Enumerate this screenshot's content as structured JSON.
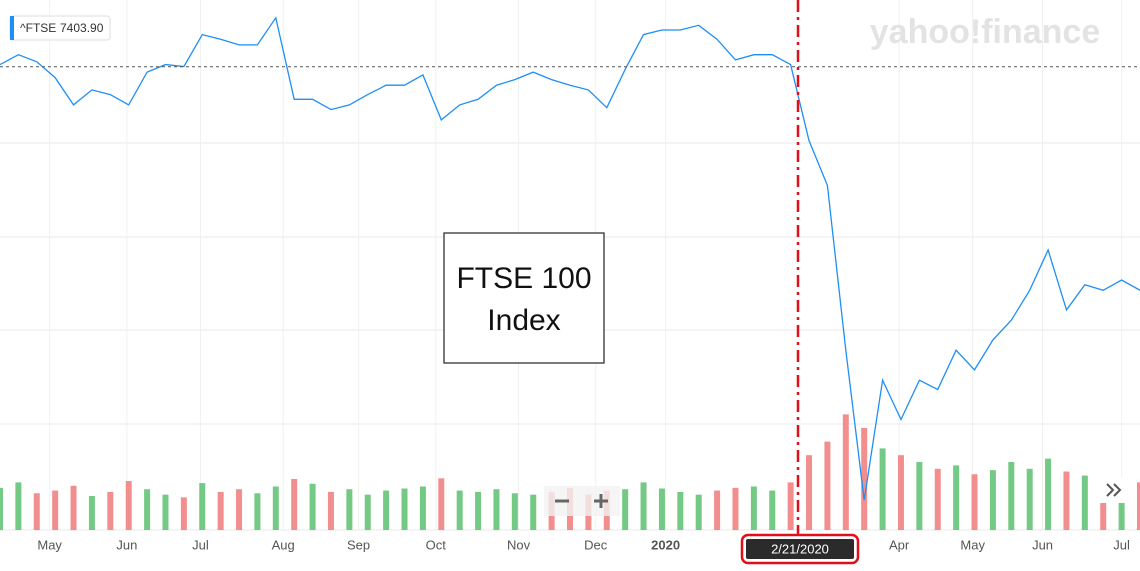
{
  "chart_data": {
    "type": "line",
    "watermark": "yahoo!finance",
    "annotation": [
      "FTSE 100",
      "Index"
    ],
    "last_price": {
      "symbol": "^FTSE",
      "value": 7403.9,
      "label": "7403.90"
    },
    "crosshair": {
      "x": 43.4,
      "label": "2/21/2020"
    },
    "xlim": [
      0,
      62
    ],
    "ylim": [
      4930,
      7760
    ],
    "y2lim": [
      0,
      2500
    ],
    "xticks": [
      {
        "value": 2.7,
        "label": "May"
      },
      {
        "value": 6.9,
        "label": "Jun"
      },
      {
        "value": 10.9,
        "label": "Jul"
      },
      {
        "value": 15.4,
        "label": "Aug"
      },
      {
        "value": 19.5,
        "label": "Sep"
      },
      {
        "value": 23.7,
        "label": "Oct"
      },
      {
        "value": 28.2,
        "label": "Nov"
      },
      {
        "value": 32.4,
        "label": "Dec"
      },
      {
        "value": 36.2,
        "label": "2020"
      },
      {
        "value": 48.9,
        "label": "Apr"
      },
      {
        "value": 52.9,
        "label": "May"
      },
      {
        "value": 56.7,
        "label": "Jun"
      },
      {
        "value": 61.0,
        "label": "Jul"
      }
    ],
    "series": [
      {
        "color": "#1e8ff5",
        "values": [
          7415,
          7468,
          7430,
          7345,
          7200,
          7280,
          7255,
          7200,
          7375,
          7415,
          7405,
          7575,
          7550,
          7520,
          7520,
          7665,
          7230,
          7230,
          7175,
          7200,
          7255,
          7305,
          7305,
          7360,
          7120,
          7200,
          7230,
          7305,
          7335,
          7375,
          7335,
          7305,
          7280,
          7185,
          7390,
          7575,
          7600,
          7600,
          7625,
          7550,
          7440,
          7468,
          7468,
          7415,
          7010,
          6770,
          5890,
          5090,
          5730,
          5520,
          5730,
          5680,
          5890,
          5785,
          5945,
          6050,
          6210,
          6425,
          6105,
          6240,
          6210,
          6265,
          6210
        ]
      }
    ],
    "volume": {
      "axis": "y2",
      "up_color": "#5cbf6e",
      "down_color": "#f07a7a",
      "values": [
        620,
        700,
        540,
        580,
        650,
        500,
        560,
        720,
        600,
        520,
        480,
        690,
        560,
        600,
        540,
        640,
        750,
        680,
        560,
        600,
        520,
        580,
        610,
        640,
        760,
        580,
        560,
        600,
        540,
        520,
        560,
        620,
        520,
        580,
        600,
        700,
        610,
        560,
        520,
        580,
        620,
        640,
        580,
        700,
        1100,
        1300,
        1700,
        1500,
        1200,
        1100,
        1000,
        900,
        950,
        820,
        880,
        1000,
        900,
        1050,
        860,
        800,
        760,
        720,
        700
      ]
    }
  }
}
